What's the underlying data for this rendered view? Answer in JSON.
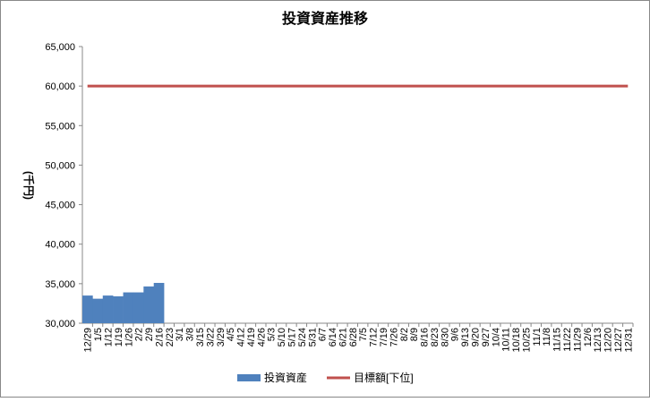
{
  "chart_data": {
    "type": "bar",
    "title": "投資資産推移",
    "y_label": "(千円)",
    "categories": [
      "12/29",
      "1/5",
      "1/12",
      "1/19",
      "1/26",
      "2/2",
      "2/9",
      "2/16",
      "2/23",
      "3/1",
      "3/8",
      "3/15",
      "3/22",
      "3/29",
      "4/5",
      "4/12",
      "4/19",
      "4/26",
      "5/3",
      "5/10",
      "5/17",
      "5/24",
      "5/31",
      "6/7",
      "6/14",
      "6/21",
      "6/28",
      "7/5",
      "7/12",
      "7/19",
      "7/26",
      "8/2",
      "8/9",
      "8/16",
      "8/23",
      "8/30",
      "9/6",
      "9/13",
      "9/20",
      "9/27",
      "10/4",
      "10/11",
      "10/18",
      "10/25",
      "11/1",
      "11/8",
      "11/15",
      "11/22",
      "11/29",
      "12/6",
      "12/13",
      "12/20",
      "12/27",
      "12/31"
    ],
    "series": [
      {
        "name": "投資資産",
        "type": "bar",
        "color": "#4f81bd",
        "values": [
          33500,
          33100,
          33500,
          33400,
          33900,
          33900,
          34650,
          35100,
          null,
          null,
          null,
          null,
          null,
          null,
          null,
          null,
          null,
          null,
          null,
          null,
          null,
          null,
          null,
          null,
          null,
          null,
          null,
          null,
          null,
          null,
          null,
          null,
          null,
          null,
          null,
          null,
          null,
          null,
          null,
          null,
          null,
          null,
          null,
          null,
          null,
          null,
          null,
          null,
          null,
          null,
          null,
          null,
          null,
          null
        ]
      },
      {
        "name": "目標額[下位]",
        "type": "line",
        "color": "#c0504d",
        "values": [
          60000,
          60000,
          60000,
          60000,
          60000,
          60000,
          60000,
          60000,
          60000,
          60000,
          60000,
          60000,
          60000,
          60000,
          60000,
          60000,
          60000,
          60000,
          60000,
          60000,
          60000,
          60000,
          60000,
          60000,
          60000,
          60000,
          60000,
          60000,
          60000,
          60000,
          60000,
          60000,
          60000,
          60000,
          60000,
          60000,
          60000,
          60000,
          60000,
          60000,
          60000,
          60000,
          60000,
          60000,
          60000,
          60000,
          60000,
          60000,
          60000,
          60000,
          60000,
          60000,
          60000,
          60000
        ]
      }
    ],
    "ylim": [
      30000,
      65000
    ],
    "yticks": [
      {
        "value": 30000,
        "label": "30,000"
      },
      {
        "value": 35000,
        "label": "35,000"
      },
      {
        "value": 40000,
        "label": "40,000"
      },
      {
        "value": 45000,
        "label": "45,000"
      },
      {
        "value": 50000,
        "label": "50,000"
      },
      {
        "value": 55000,
        "label": "55,000"
      },
      {
        "value": 60000,
        "label": "60,000"
      },
      {
        "value": 65000,
        "label": "65,000"
      }
    ],
    "legend": "bottom"
  }
}
